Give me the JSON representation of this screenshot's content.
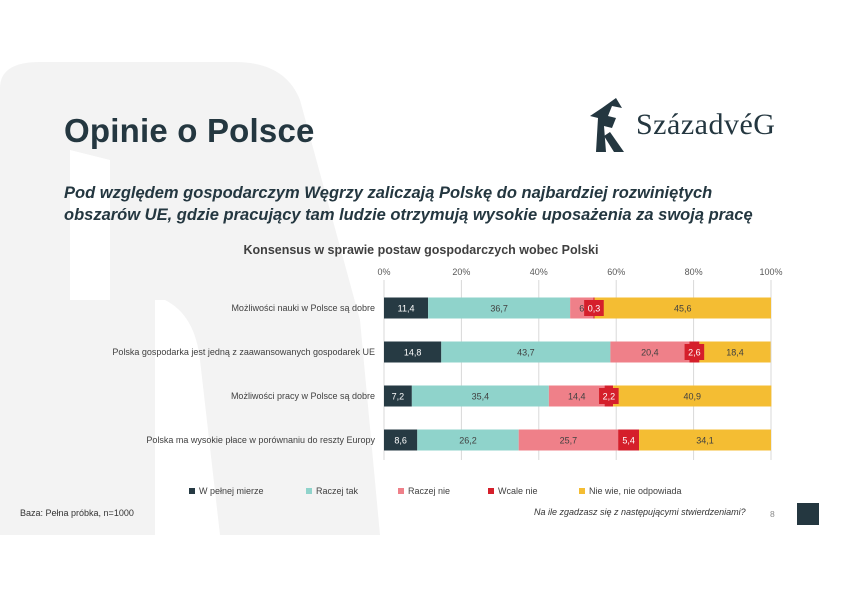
{
  "title": "Opinie o Polsce",
  "subtitle": "Pod względem gospodarczym Węgrzy zaliczają Polskę do najbardziej rozwiniętych obszarów UE, gdzie pracujący tam ludzie otrzymują wysokie uposażenia za swoją pracę",
  "logo_text": "SzázadvéG",
  "footer": {
    "base": "Baza: Pełna próbka, n=1000",
    "question": "Na ile zgadzasz się z następującymi stwierdzeniami?",
    "page": "8"
  },
  "colors": {
    "brand": "#243740",
    "watermark": "#f3f3f3"
  },
  "chart_data": {
    "type": "bar",
    "orientation": "horizontal",
    "stacked": true,
    "title": "Konsensus w sprawie postaw gospodarczych wobec Polski",
    "xlim": [
      0,
      100
    ],
    "xticks": [
      "0%",
      "20%",
      "40%",
      "60%",
      "80%",
      "100%"
    ],
    "categories": [
      "Możliwości nauki w Polsce są dobre",
      "Polska gospodarka jest jedną z zaawansowanych gospodarek UE",
      "Możliwości pracy w Polsce są dobre",
      "Polska ma wysokie płace w porównaniu do reszty Europy"
    ],
    "series": [
      {
        "name": "W pełnej mierze",
        "color": "#263a43",
        "values": [
          11.4,
          14.8,
          7.2,
          8.6
        ],
        "labels": [
          "11,4",
          "14,8",
          "7,2",
          "8,6"
        ]
      },
      {
        "name": "Raczej tak",
        "color": "#8fd3cb",
        "values": [
          36.7,
          43.7,
          35.4,
          26.2
        ],
        "labels": [
          "36,7",
          "43,7",
          "35,4",
          "26,2"
        ]
      },
      {
        "name": "Raczej nie",
        "color": "#ef8089",
        "values": [
          6,
          20.4,
          14.4,
          25.7
        ],
        "labels": [
          "6",
          "20,4",
          "14,4",
          "25,7"
        ]
      },
      {
        "name": "Wcale nie",
        "color": "#d51f2b",
        "values": [
          0.3,
          2.6,
          2.2,
          5.4
        ],
        "labels": [
          "0,3",
          "2,6",
          "2,2",
          "5,4"
        ]
      },
      {
        "name": "Nie wie, nie odpowiada",
        "color": "#f4bd33",
        "values": [
          45.6,
          18.4,
          40.9,
          34.1
        ],
        "labels": [
          "45,6",
          "18,4",
          "40,9",
          "34,1"
        ]
      }
    ],
    "grid": true,
    "legend_position": "bottom"
  }
}
